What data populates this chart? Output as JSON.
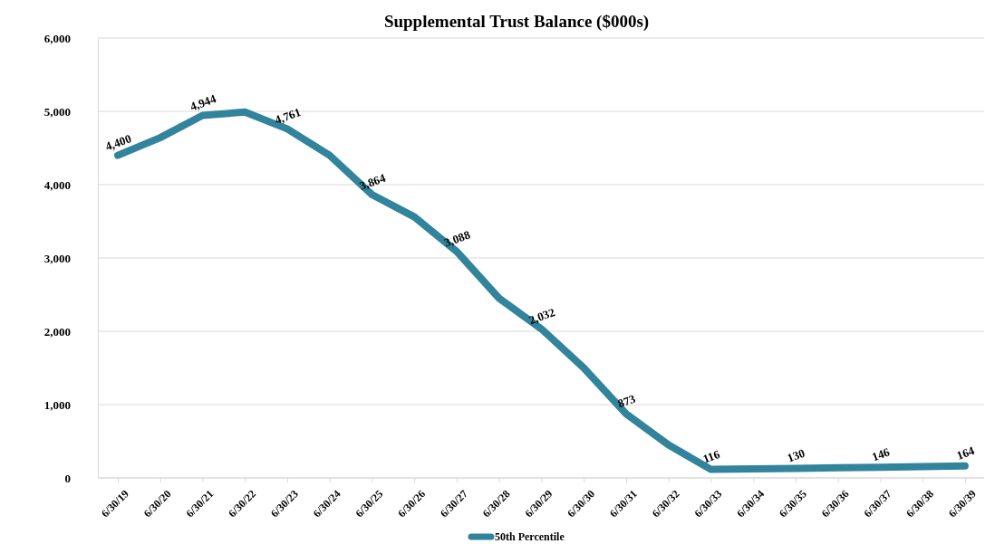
{
  "chart_data": {
    "type": "line",
    "title": "Supplemental Trust Balance ($000s)",
    "categories": [
      "6/30/19",
      "6/30/20",
      "6/30/21",
      "6/30/22",
      "6/30/23",
      "6/30/24",
      "6/30/25",
      "6/30/26",
      "6/30/27",
      "6/30/28",
      "6/30/29",
      "6/30/30",
      "6/30/31",
      "6/30/32",
      "6/30/33",
      "6/30/34",
      "6/30/35",
      "6/30/36",
      "6/30/37",
      "6/30/38",
      "6/30/39"
    ],
    "series": [
      {
        "name": "50th Percentile",
        "color": "#31849b",
        "values": [
          4400,
          4640,
          4944,
          4990,
          4761,
          4400,
          3864,
          3560,
          3088,
          2450,
          2032,
          1500,
          873,
          450,
          116,
          123,
          130,
          138,
          146,
          155,
          164
        ],
        "value_labels": [
          "4,400",
          null,
          "4,944",
          null,
          "4,761",
          null,
          "3,864",
          null,
          "3,088",
          null,
          "2,032",
          null,
          "873",
          null,
          "116",
          null,
          "130",
          null,
          "146",
          null,
          "164"
        ]
      }
    ],
    "ylim": [
      0,
      6000
    ],
    "yticks": [
      {
        "value": 0,
        "label": "0"
      },
      {
        "value": 1000,
        "label": "1,000"
      },
      {
        "value": 2000,
        "label": "2,000"
      },
      {
        "value": 3000,
        "label": "3,000"
      },
      {
        "value": 4000,
        "label": "4,000"
      },
      {
        "value": 5000,
        "label": "5,000"
      },
      {
        "value": 6000,
        "label": "6,000"
      }
    ],
    "grid": "y",
    "legend": "bottom",
    "marker": "none",
    "line_style": "solid"
  }
}
